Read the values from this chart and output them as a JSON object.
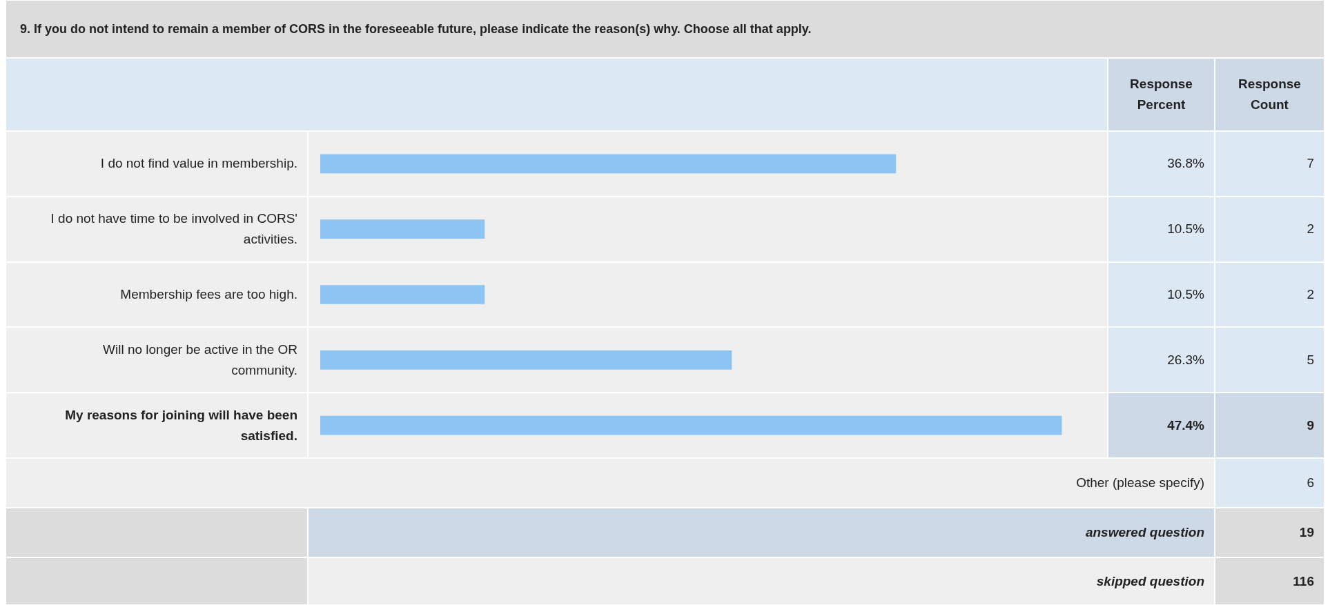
{
  "chart_data": {
    "type": "bar",
    "orientation": "horizontal",
    "title": "9. If you do not intend to remain a member of CORS in the foreseeable future, please indicate the reason(s) why. Choose all that apply.",
    "categories": [
      "I do not find value in membership.",
      "I do not have time to be involved in CORS' activities.",
      "Membership fees are too high.",
      "Will no longer be active in the OR community.",
      "My reasons for joining will have been satisfied."
    ],
    "series": [
      {
        "color": "#8cc4f4",
        "values": [
          36.8,
          10.5,
          10.5,
          26.3,
          47.4
        ],
        "value_labels": [
          "36.8%",
          "10.5%",
          "10.5%",
          "26.3%",
          "47.4%"
        ]
      }
    ],
    "tick_labels": false,
    "annotations": [
      "Response Percent",
      "Response Count",
      "7",
      "2",
      "2",
      "5",
      "9",
      "Other (please specify)",
      "6",
      "answered question",
      "19",
      "skipped question",
      "116"
    ]
  }
}
